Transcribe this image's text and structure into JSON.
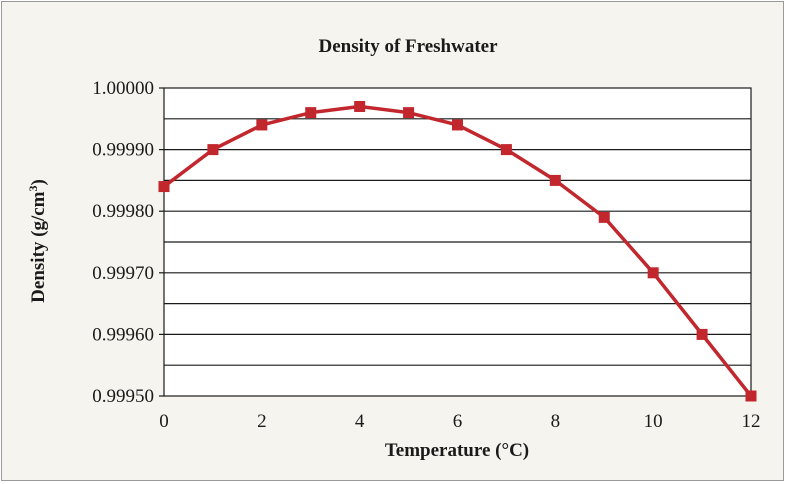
{
  "colors": {
    "series": "#c1272d",
    "background": "#f6f4ee"
  },
  "chart_data": {
    "type": "line",
    "title": "Density of Freshwater",
    "xlabel": "Temperature (°C)",
    "ylabel": "Density (g/cm³)",
    "ylabel_parts": {
      "main": "Density (g/cm",
      "sup": "3",
      "tail": ")"
    },
    "xlim": [
      0,
      12
    ],
    "ylim": [
      0.9995,
      1.0
    ],
    "x_ticks": [
      "0",
      "2",
      "4",
      "6",
      "8",
      "10",
      "12"
    ],
    "x_tick_values": [
      0,
      2,
      4,
      6,
      8,
      10,
      12
    ],
    "y_ticks": [
      "1.00000",
      "0.99990",
      "0.99980",
      "0.99970",
      "0.99960",
      "0.99950"
    ],
    "y_tick_values": [
      1.0,
      0.9999,
      0.9998,
      0.9997,
      0.9996,
      0.9995
    ],
    "y_gridlines": [
      0.99995,
      0.9999,
      0.99985,
      0.9998,
      0.99975,
      0.9997,
      0.99965,
      0.9996,
      0.99955
    ],
    "grid": true,
    "marker": "square",
    "series": [
      {
        "x": [
          0,
          1,
          2,
          3,
          4,
          5,
          6,
          7,
          8,
          9,
          10,
          11,
          12
        ],
        "values": [
          0.99984,
          0.9999,
          0.99994,
          0.99996,
          0.99997,
          0.99996,
          0.99994,
          0.9999,
          0.99985,
          0.99979,
          0.9997,
          0.9996,
          0.9995
        ]
      }
    ]
  }
}
